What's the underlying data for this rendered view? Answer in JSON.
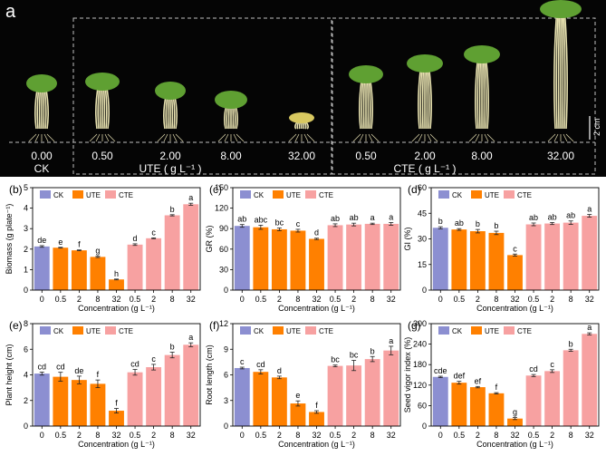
{
  "photo_panel": {
    "letter": "a",
    "groups": [
      {
        "conc": "0.00",
        "label": "CK"
      },
      {
        "conc": "0.50"
      },
      {
        "conc": "2.00",
        "label": "UTE ( g L⁻¹ )"
      },
      {
        "conc": "8.00"
      },
      {
        "conc": "32.00"
      },
      {
        "conc": "0.50"
      },
      {
        "conc": "2.00",
        "label": "CTE ( g L⁻¹ )"
      },
      {
        "conc": "8.00"
      },
      {
        "conc": "32.00"
      }
    ],
    "scale_label": "2 cm",
    "colors": {
      "background": "#050505",
      "seedling_leaf": "#5fa032",
      "seedling_stem": "#e8e2b0",
      "roots": "#d9d2a8"
    }
  },
  "legend": [
    "CK",
    "UTE",
    "CTE"
  ],
  "colors": {
    "CK": "#8c8fd1",
    "UTE": "#ff8000",
    "CTE": "#f7a1a1"
  },
  "chart_data": [
    {
      "id": "b",
      "type": "bar",
      "panel_label": "(b)",
      "ylabel": "Biomass (g plate⁻¹)",
      "xlabel": "Concentration (g L⁻¹)",
      "categories": [
        "0",
        "0.5",
        "2",
        "8",
        "32",
        "0.5",
        "2",
        "8",
        "32"
      ],
      "groups": [
        "CK",
        "UTE",
        "UTE",
        "UTE",
        "UTE",
        "CTE",
        "CTE",
        "CTE",
        "CTE"
      ],
      "values": [
        2.13,
        2.07,
        1.94,
        1.62,
        0.52,
        2.22,
        2.53,
        3.65,
        4.19
      ],
      "errors": [
        0.04,
        0.02,
        0.02,
        0.03,
        0.02,
        0.04,
        0.02,
        0.03,
        0.05
      ],
      "letters": [
        "de",
        "e",
        "f",
        "g",
        "h",
        "d",
        "c",
        "b",
        "a"
      ],
      "ylim": [
        0,
        5
      ],
      "yticks": [
        0,
        1,
        2,
        3,
        4,
        5
      ]
    },
    {
      "id": "c",
      "type": "bar",
      "panel_label": "(c)",
      "ylabel": "GR (%)",
      "xlabel": "Concentration (g L⁻¹)",
      "categories": [
        "0",
        "0.5",
        "2",
        "8",
        "32",
        "0.5",
        "2",
        "8",
        "32"
      ],
      "groups": [
        "CK",
        "UTE",
        "UTE",
        "UTE",
        "UTE",
        "CTE",
        "CTE",
        "CTE",
        "CTE"
      ],
      "values": [
        94,
        92,
        89,
        87,
        75,
        95,
        96,
        97,
        97
      ],
      "errors": [
        2,
        3,
        2,
        2,
        1,
        2,
        2,
        1,
        2
      ],
      "letters": [
        "ab",
        "abc",
        "bc",
        "c",
        "d",
        "ab",
        "ab",
        "a",
        "a"
      ],
      "ylim": [
        0,
        150
      ],
      "yticks": [
        0,
        30,
        60,
        90,
        120,
        150
      ]
    },
    {
      "id": "d",
      "type": "bar",
      "panel_label": "(d)",
      "ylabel": "GI (%)",
      "xlabel": "Concentration (g L⁻¹)",
      "categories": [
        "0",
        "0.5",
        "2",
        "8",
        "32",
        "0.5",
        "2",
        "8",
        "32"
      ],
      "groups": [
        "CK",
        "UTE",
        "UTE",
        "UTE",
        "UTE",
        "CTE",
        "CTE",
        "CTE",
        "CTE"
      ],
      "values": [
        36.5,
        35.5,
        34.5,
        33.5,
        20.5,
        38.5,
        39,
        39.5,
        43.5
      ],
      "errors": [
        0.6,
        0.5,
        1.0,
        1.0,
        0.6,
        0.8,
        0.6,
        1.0,
        0.8
      ],
      "letters": [
        "b",
        "ab",
        "b",
        "b",
        "c",
        "ab",
        "ab",
        "ab",
        "a"
      ],
      "ylim": [
        0,
        60
      ],
      "yticks": [
        0,
        15,
        30,
        45,
        60
      ]
    },
    {
      "id": "e",
      "type": "bar",
      "panel_label": "(e)",
      "ylabel": "Plant height (cm)",
      "xlabel": "Concentration (g L⁻¹)",
      "categories": [
        "0",
        "0.5",
        "2",
        "8",
        "32",
        "0.5",
        "2",
        "8",
        "32"
      ],
      "groups": [
        "CK",
        "UTE",
        "UTE",
        "UTE",
        "UTE",
        "CTE",
        "CTE",
        "CTE",
        "CTE"
      ],
      "values": [
        4.1,
        3.85,
        3.6,
        3.3,
        1.2,
        4.2,
        4.6,
        5.55,
        6.35
      ],
      "errors": [
        0.12,
        0.35,
        0.3,
        0.3,
        0.18,
        0.22,
        0.22,
        0.22,
        0.15
      ],
      "letters": [
        "cd",
        "cd",
        "de",
        "f",
        "f",
        "cd",
        "c",
        "b",
        "a"
      ],
      "ylim": [
        0,
        8
      ],
      "yticks": [
        0,
        2,
        4,
        6,
        8
      ]
    },
    {
      "id": "f",
      "type": "bar",
      "panel_label": "(f)",
      "ylabel": "Root length (cm)",
      "xlabel": "Concentration (g L⁻¹)",
      "categories": [
        "0",
        "0.5",
        "2",
        "8",
        "32",
        "0.5",
        "2",
        "8",
        "32"
      ],
      "groups": [
        "CK",
        "UTE",
        "UTE",
        "UTE",
        "UTE",
        "CTE",
        "CTE",
        "CTE",
        "CTE"
      ],
      "values": [
        6.8,
        6.35,
        5.7,
        2.65,
        1.65,
        7.05,
        7.1,
        7.85,
        8.85
      ],
      "errors": [
        0.1,
        0.25,
        0.15,
        0.3,
        0.15,
        0.1,
        0.6,
        0.3,
        0.5
      ],
      "letters": [
        "c",
        "cd",
        "d",
        "e",
        "f",
        "bc",
        "bc",
        "b",
        "a"
      ],
      "ylim": [
        0,
        12
      ],
      "yticks": [
        0,
        3,
        6,
        9,
        12
      ]
    },
    {
      "id": "g",
      "type": "bar",
      "panel_label": "(g)",
      "ylabel": "Seed vigor index (%)",
      "xlabel": "Concentration (g L⁻¹)",
      "categories": [
        "0",
        "0.5",
        "2",
        "8",
        "32",
        "0.5",
        "2",
        "8",
        "32"
      ],
      "groups": [
        "CK",
        "UTE",
        "UTE",
        "UTE",
        "UTE",
        "CTE",
        "CTE",
        "CTE",
        "CTE"
      ],
      "values": [
        144,
        127,
        114,
        96,
        22,
        148,
        161,
        222,
        270
      ],
      "errors": [
        2,
        4,
        2,
        2,
        3,
        3,
        4,
        3,
        3
      ],
      "letters": [
        "cde",
        "def",
        "ef",
        "f",
        "g",
        "cd",
        "c",
        "b",
        "a"
      ],
      "ylim": [
        0,
        300
      ],
      "yticks": [
        0,
        60,
        120,
        180,
        240,
        300
      ]
    }
  ]
}
